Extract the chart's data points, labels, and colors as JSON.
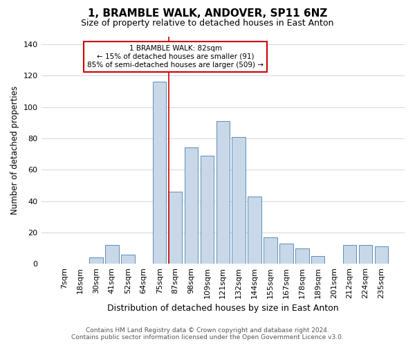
{
  "title": "1, BRAMBLE WALK, ANDOVER, SP11 6NZ",
  "subtitle": "Size of property relative to detached houses in East Anton",
  "xlabel": "Distribution of detached houses by size in East Anton",
  "ylabel": "Number of detached properties",
  "footer_line1": "Contains HM Land Registry data © Crown copyright and database right 2024.",
  "footer_line2": "Contains public sector information licensed under the Open Government Licence v3.0.",
  "categories": [
    "7sqm",
    "18sqm",
    "30sqm",
    "41sqm",
    "52sqm",
    "64sqm",
    "75sqm",
    "87sqm",
    "98sqm",
    "109sqm",
    "121sqm",
    "132sqm",
    "144sqm",
    "155sqm",
    "167sqm",
    "178sqm",
    "189sqm",
    "201sqm",
    "212sqm",
    "224sqm",
    "235sqm"
  ],
  "values": [
    0,
    0,
    4,
    12,
    6,
    0,
    116,
    46,
    74,
    69,
    91,
    81,
    43,
    17,
    13,
    10,
    5,
    0,
    12,
    12,
    11
  ],
  "bar_color": "#c8d8e8",
  "bar_edge_color": "#5b8db8",
  "vline_x_index": 6.58,
  "annotation_title": "1 BRAMBLE WALK: 82sqm",
  "annotation_line1": "← 15% of detached houses are smaller (91)",
  "annotation_line2": "85% of semi-detached houses are larger (509) →",
  "annotation_box_color": "#ffffff",
  "annotation_box_edge": "#cc0000",
  "annotation_box_edge_width": 1.5,
  "ylim": [
    0,
    145
  ],
  "yticks": [
    0,
    20,
    40,
    60,
    80,
    100,
    120,
    140
  ],
  "bg_color": "#ffffff",
  "grid_color": "#d0d0d0",
  "title_fontsize": 11,
  "subtitle_fontsize": 9,
  "ylabel_fontsize": 8.5,
  "xlabel_fontsize": 9,
  "tick_fontsize": 8,
  "footer_fontsize": 6.5
}
